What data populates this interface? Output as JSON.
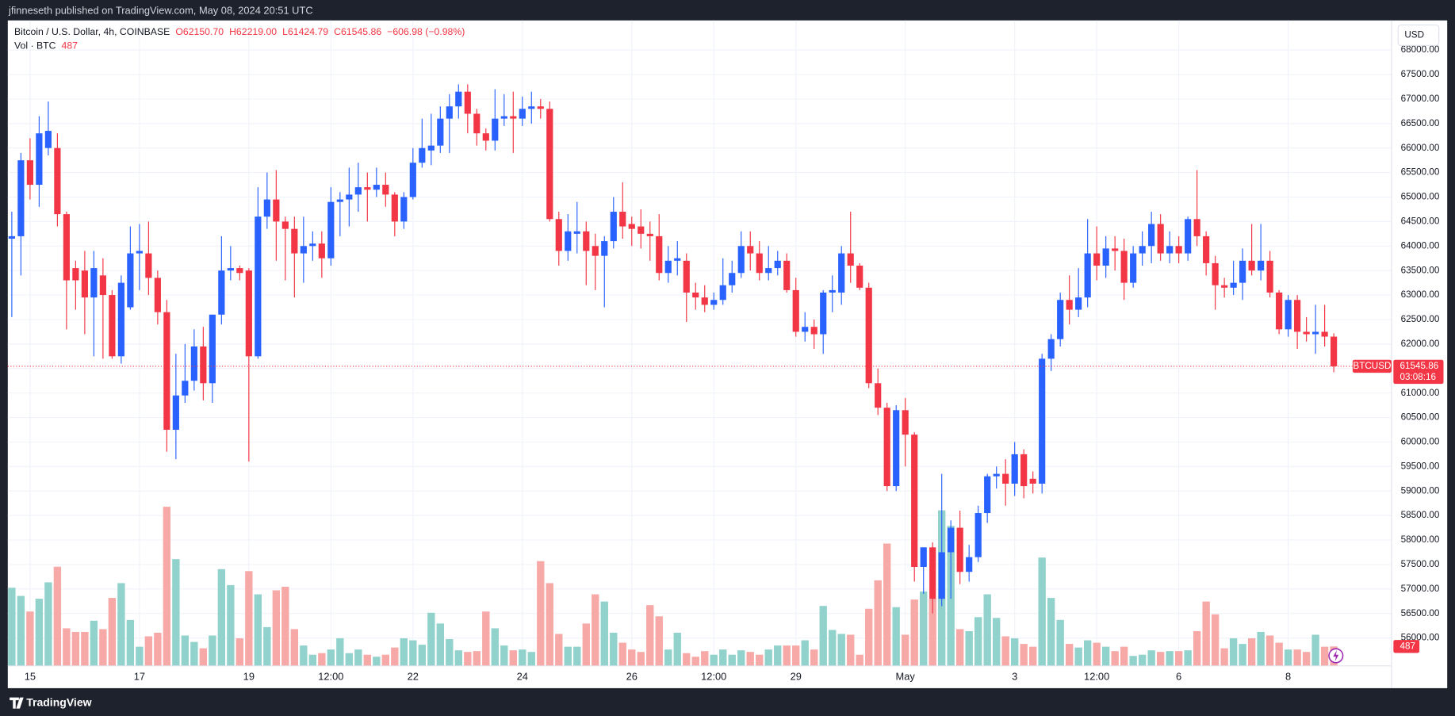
{
  "header": {
    "text": "jfinneseth published on TradingView.com, May 08, 2024 20:51 UTC"
  },
  "footer": {
    "brand": "TradingView"
  },
  "chart_data": {
    "type": "candlestick",
    "title": "Bitcoin / U.S. Dollar, 4h, COINBASE",
    "ohlc_legend": [
      "O62150.70",
      "H62219.00",
      "L61424.79",
      "C61545.86",
      "−606.98 (−0.98%)"
    ],
    "volume_title": "Vol · BTC",
    "currency": "USD",
    "symbol": "BTCUSD",
    "countdown": "03:08:16",
    "up_color": "#2962ff",
    "down_color": "#f23645",
    "volume_up_color": "#92d2cc",
    "volume_down_color": "#f7a9a7",
    "grid": true,
    "ylim": [
      55430,
      68605
    ],
    "yticks": [
      {
        "value": 56000,
        "label": "56000.00"
      },
      {
        "value": 56500,
        "label": "56500.00"
      },
      {
        "value": 57000,
        "label": "57000.00"
      },
      {
        "value": 57500,
        "label": "57500.00"
      },
      {
        "value": 58000,
        "label": "58000.00"
      },
      {
        "value": 58500,
        "label": "58500.00"
      },
      {
        "value": 59000,
        "label": "59000.00"
      },
      {
        "value": 59500,
        "label": "59500.00"
      },
      {
        "value": 60000,
        "label": "60000.00"
      },
      {
        "value": 60500,
        "label": "60500.00"
      },
      {
        "value": 61000,
        "label": "61000.00"
      },
      {
        "value": 61500,
        "label": "61500.00"
      },
      {
        "value": 62000,
        "label": "62000.00"
      },
      {
        "value": 62500,
        "label": "62500.00"
      },
      {
        "value": 63000,
        "label": "63000.00"
      },
      {
        "value": 63500,
        "label": "63500.00"
      },
      {
        "value": 64000,
        "label": "64000.00"
      },
      {
        "value": 64500,
        "label": "64500.00"
      },
      {
        "value": 65000,
        "label": "65000.00"
      },
      {
        "value": 65500,
        "label": "65500.00"
      },
      {
        "value": 66000,
        "label": "66000.00"
      },
      {
        "value": 66500,
        "label": "66500.00"
      },
      {
        "value": 67000,
        "label": "67000.00"
      },
      {
        "value": 67500,
        "label": "67500.00"
      },
      {
        "value": 68000,
        "label": "68000.00"
      }
    ],
    "volume_lim": [
      0,
      16140
    ],
    "categories": [
      null,
      null,
      "15",
      null,
      null,
      null,
      null,
      null,
      null,
      null,
      null,
      null,
      null,
      null,
      "17",
      null,
      null,
      null,
      null,
      null,
      null,
      null,
      null,
      null,
      null,
      null,
      "19",
      null,
      null,
      null,
      null,
      null,
      null,
      null,
      null,
      "12:00",
      null,
      null,
      null,
      null,
      null,
      null,
      null,
      null,
      "22",
      null,
      null,
      null,
      null,
      null,
      null,
      null,
      null,
      null,
      null,
      null,
      "24",
      null,
      null,
      null,
      null,
      null,
      null,
      null,
      null,
      null,
      null,
      null,
      "26",
      null,
      null,
      null,
      null,
      null,
      null,
      null,
      null,
      "12:00",
      null,
      null,
      null,
      null,
      null,
      null,
      null,
      null,
      "29",
      null,
      null,
      null,
      null,
      null,
      null,
      null,
      null,
      null,
      null,
      null,
      "May",
      null,
      null,
      null,
      null,
      null,
      null,
      null,
      null,
      null,
      null,
      null,
      "3",
      null,
      null,
      null,
      null,
      null,
      null,
      null,
      null,
      "12:00",
      null,
      null,
      null,
      null,
      null,
      null,
      null,
      null,
      "6",
      null,
      null,
      null,
      null,
      null,
      null,
      null,
      null,
      null,
      null,
      null,
      "8",
      null,
      null,
      null,
      null,
      null
    ],
    "open": [
      64150,
      64200,
      65750,
      65250,
      66000,
      66000,
      64650,
      63550,
      63500,
      62950,
      63400,
      63000,
      61750,
      62750,
      63850,
      63850,
      63350,
      62650,
      60250,
      60950,
      61250,
      61950,
      61200,
      62600,
      63500,
      63550,
      63500,
      61750,
      64600,
      64950,
      64500,
      64350,
      63850,
      64000,
      64050,
      63750,
      64900,
      64950,
      65050,
      65200,
      65150,
      65250,
      65050,
      64500,
      65000,
      65700,
      65950,
      66050,
      66600,
      66850,
      67150,
      66700,
      66300,
      66150,
      66600,
      66650,
      66600,
      66800,
      66850,
      66800,
      64550,
      63900,
      64250,
      64300,
      64000,
      63800,
      64100,
      64700,
      64450,
      64400,
      64250,
      64200,
      63450,
      63700,
      63700,
      63050,
      62950,
      62800,
      62900,
      63200,
      63450,
      64000,
      63850,
      63450,
      63550,
      63700,
      63100,
      62250,
      62350,
      62200,
      63050,
      63050,
      63850,
      63600,
      63150,
      61200,
      60700,
      59100,
      60650,
      60150,
      57450,
      57850,
      56800,
      57750,
      58250,
      57350,
      57650,
      58550,
      59300,
      59350,
      59150,
      59750,
      59250,
      59150,
      61700,
      62100,
      62900,
      62700,
      62950,
      63850,
      63600,
      63950,
      63900,
      63250,
      63850,
      64000,
      64450,
      63850,
      64000,
      63850,
      64550,
      64200,
      63650,
      63200,
      63150,
      63250,
      63700,
      63500,
      63700,
      63050,
      62300,
      62900,
      62250,
      62200,
      62250,
      62150.7
    ],
    "high": [
      64700,
      65900,
      66200,
      66650,
      66950,
      66300,
      64700,
      63700,
      63900,
      63900,
      63750,
      63100,
      63400,
      64400,
      64450,
      64500,
      63500,
      62900,
      61800,
      62000,
      62300,
      62350,
      62600,
      64200,
      64000,
      63600,
      63550,
      65200,
      65500,
      65550,
      64600,
      64600,
      64600,
      64300,
      64300,
      65200,
      65100,
      65600,
      65700,
      65500,
      65600,
      65500,
      65100,
      65100,
      66000,
      66600,
      66700,
      66850,
      67100,
      67300,
      67300,
      66800,
      66400,
      67200,
      67100,
      67150,
      67050,
      67150,
      67000,
      66950,
      64700,
      64650,
      64900,
      64500,
      64250,
      64200,
      65000,
      65300,
      64600,
      64750,
      64500,
      64650,
      64000,
      64100,
      63850,
      63250,
      63200,
      63050,
      63750,
      63700,
      64300,
      64300,
      64100,
      64000,
      63900,
      63850,
      63350,
      62650,
      62500,
      63100,
      63400,
      64000,
      64700,
      63650,
      63250,
      61500,
      60800,
      60750,
      60900,
      60200,
      57850,
      57950,
      59350,
      58400,
      58600,
      57900,
      58700,
      59350,
      59500,
      59650,
      60000,
      59850,
      59400,
      61800,
      62200,
      63050,
      63400,
      63550,
      64550,
      64400,
      64200,
      64200,
      64150,
      64000,
      64300,
      64700,
      64650,
      64300,
      64200,
      64600,
      65550,
      64300,
      63800,
      63350,
      63700,
      63950,
      64450,
      64450,
      63900,
      63100,
      63000,
      63000,
      62550,
      62800,
      62800,
      62219.0
    ],
    "low": [
      62550,
      63400,
      64950,
      64800,
      65850,
      64400,
      62300,
      62700,
      62200,
      61750,
      61700,
      61700,
      61600,
      62700,
      63100,
      63000,
      62400,
      59800,
      59650,
      60800,
      61050,
      60850,
      60800,
      62400,
      63300,
      63300,
      59600,
      61700,
      64350,
      63700,
      63300,
      62950,
      63250,
      63700,
      63350,
      63600,
      64200,
      64400,
      64700,
      64500,
      65000,
      64800,
      64200,
      64350,
      64950,
      65600,
      65650,
      65900,
      65900,
      66600,
      66300,
      66050,
      65950,
      65950,
      66450,
      65900,
      66450,
      66500,
      66600,
      64500,
      63600,
      63700,
      63850,
      63200,
      63100,
      62750,
      63950,
      64150,
      64000,
      63950,
      63700,
      63300,
      63250,
      63400,
      62450,
      62700,
      62650,
      62700,
      62800,
      63050,
      63350,
      63500,
      63300,
      63300,
      63400,
      63050,
      62150,
      62050,
      61900,
      61800,
      62650,
      62800,
      63250,
      63100,
      61100,
      60550,
      59000,
      59000,
      59500,
      57150,
      56900,
      56500,
      56650,
      56800,
      57100,
      57150,
      57550,
      58350,
      59050,
      58700,
      58900,
      58850,
      58950,
      58950,
      61450,
      61950,
      62400,
      62550,
      62750,
      63300,
      63350,
      63500,
      62900,
      63150,
      63600,
      63650,
      63700,
      63650,
      63650,
      63700,
      64000,
      63400,
      62700,
      62950,
      63000,
      62900,
      63400,
      63300,
      62950,
      62200,
      62150,
      61900,
      62050,
      61800,
      61950,
      61424.79
    ],
    "close": [
      64200,
      65750,
      65250,
      66300,
      66350,
      64650,
      63300,
      63300,
      62950,
      63550,
      63000,
      61750,
      63250,
      63850,
      63900,
      63350,
      62650,
      60250,
      60950,
      61250,
      61950,
      61200,
      62600,
      63500,
      63550,
      63450,
      61750,
      64600,
      64950,
      64500,
      64350,
      63850,
      64000,
      64050,
      63750,
      64900,
      64950,
      65050,
      65200,
      65150,
      65250,
      65050,
      64500,
      65000,
      65700,
      66000,
      66050,
      66600,
      66850,
      67150,
      66700,
      66300,
      66150,
      66600,
      66650,
      66600,
      66800,
      66850,
      66800,
      64550,
      63900,
      64300,
      64300,
      63900,
      63800,
      64100,
      64700,
      64400,
      64350,
      64250,
      64200,
      63450,
      63700,
      63750,
      63050,
      62950,
      62800,
      62900,
      63200,
      63450,
      64000,
      63850,
      63450,
      63550,
      63700,
      63100,
      62250,
      62350,
      62200,
      63050,
      63100,
      63850,
      63600,
      63150,
      61200,
      60700,
      59100,
      60650,
      60150,
      57450,
      57850,
      56800,
      57750,
      58250,
      57350,
      57650,
      58550,
      59300,
      59350,
      59150,
      59750,
      59100,
      59150,
      61700,
      62100,
      62900,
      62700,
      62950,
      63850,
      63600,
      63950,
      63900,
      63250,
      63850,
      64000,
      64450,
      63850,
      64000,
      63850,
      64550,
      64200,
      63650,
      63200,
      63150,
      63250,
      63700,
      63500,
      63700,
      63050,
      62300,
      62900,
      62250,
      62200,
      62250,
      62150.7,
      61545.86
    ],
    "volume": [
      1955,
      1750,
      1360,
      1680,
      2090,
      2480,
      940,
      850,
      850,
      1130,
      920,
      1700,
      2070,
      1150,
      480,
      740,
      830,
      3980,
      2670,
      760,
      600,
      440,
      760,
      2420,
      2020,
      690,
      2370,
      1790,
      970,
      1890,
      1980,
      920,
      510,
      280,
      320,
      410,
      690,
      320,
      410,
      280,
      230,
      280,
      460,
      690,
      640,
      530,
      1330,
      1060,
      670,
      390,
      350,
      370,
      1360,
      940,
      510,
      390,
      410,
      350,
      2620,
      2070,
      800,
      480,
      480,
      1060,
      1790,
      1610,
      830,
      580,
      410,
      350,
      1520,
      1240,
      410,
      830,
      320,
      230,
      370,
      280,
      410,
      280,
      390,
      350,
      280,
      410,
      510,
      510,
      510,
      640,
      410,
      1500,
      900,
      800,
      780,
      280,
      1430,
      2140,
      3060,
      1470,
      780,
      1660,
      1860,
      1680,
      3890,
      3500,
      920,
      870,
      1220,
      1790,
      1200,
      740,
      690,
      550,
      480,
      2710,
      1700,
      1150,
      550,
      460,
      640,
      580,
      480,
      370,
      480,
      250,
      280,
      390,
      350,
      370,
      370,
      390,
      870,
      1610,
      1290,
      440,
      690,
      550,
      690,
      850,
      760,
      580,
      410,
      410,
      350,
      780,
      480,
      487
    ]
  }
}
